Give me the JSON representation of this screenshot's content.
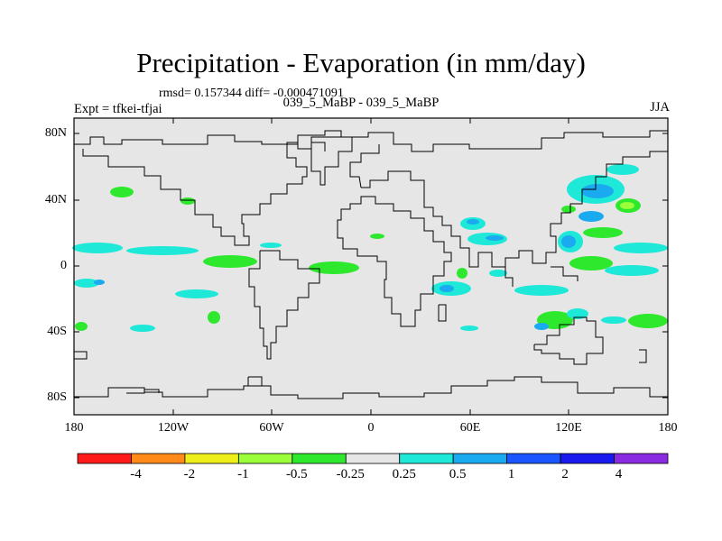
{
  "title": "Precipitation - Evaporation (in mm/day)",
  "stats_line": "rmsd= 0.157344 diff= -0.000471091",
  "subtitle": "039_5_MaBP - 039_5_MaBP",
  "left_label": "Expt = tfkei-tfjai",
  "right_label": "JJA",
  "axes": {
    "y_ticks": [
      "80N",
      "40N",
      "0",
      "40S",
      "80S"
    ],
    "x_ticks": [
      "180",
      "120W",
      "60W",
      "0",
      "60E",
      "120E",
      "180"
    ]
  },
  "colorbar": {
    "colors": [
      "#ff1a1a",
      "#ff8a1a",
      "#eeee1a",
      "#9aff3a",
      "#2ee82e",
      "#e6e6e6",
      "#1ee8d8",
      "#1aaaf0",
      "#1a55ff",
      "#1a1aee",
      "#8a2be2"
    ],
    "labels": [
      "-4",
      "-2",
      "-1",
      "-0.5",
      "-0.25",
      "0.25",
      "0.5",
      "1",
      "2",
      "4"
    ]
  },
  "map": {
    "background_color": "#e6e6e6",
    "lon_range": [
      -180,
      180
    ],
    "lat_range": [
      -90,
      90
    ]
  }
}
